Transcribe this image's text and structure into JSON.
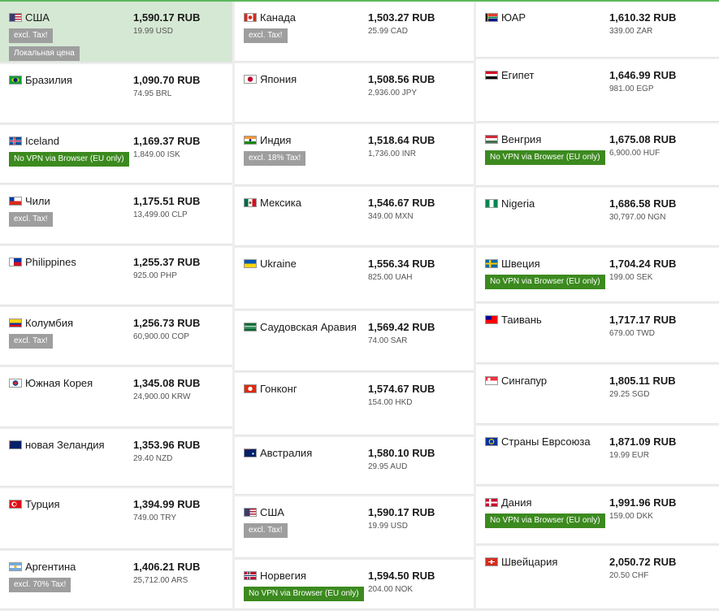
{
  "columns": [
    [
      {
        "country": "США",
        "price": "1,590.17 RUB",
        "orig": "19.99 USD",
        "flag": "us-flag",
        "badges": [
          {
            "text": "excl. Tax!",
            "kind": "gray"
          },
          {
            "text": "Локальная цена",
            "kind": "gray"
          }
        ],
        "highlight": true
      },
      {
        "country": "Бразилия",
        "price": "1,090.70 RUB",
        "orig": "74.95 BRL",
        "flag": "brazil-flag",
        "badges": []
      },
      {
        "country": "Iceland",
        "price": "1,169.37 RUB",
        "orig": "1,849.00 ISK",
        "flag": "iceland-flag",
        "badges": [
          {
            "text": "No VPN via Browser (EU only)",
            "kind": "green"
          }
        ]
      },
      {
        "country": "Чили",
        "price": "1,175.51 RUB",
        "orig": "13,499.00 CLP",
        "flag": "chile-flag",
        "badges": [
          {
            "text": "excl. Tax!",
            "kind": "gray"
          }
        ]
      },
      {
        "country": "Philippines",
        "price": "1,255.37 RUB",
        "orig": "925.00 PHP",
        "flag": "philippines-flag",
        "badges": []
      },
      {
        "country": "Колумбия",
        "price": "1,256.73 RUB",
        "orig": "60,900.00 COP",
        "flag": "colombia-flag",
        "badges": [
          {
            "text": "excl. Tax!",
            "kind": "gray"
          }
        ]
      },
      {
        "country": "Южная Корея",
        "price": "1,345.08 RUB",
        "orig": "24,900.00 KRW",
        "flag": "south-korea-flag",
        "badges": []
      },
      {
        "country": "новая Зеландия",
        "price": "1,353.96 RUB",
        "orig": "29.40 NZD",
        "flag": "new-zealand-flag",
        "badges": []
      },
      {
        "country": "Турция",
        "price": "1,394.99 RUB",
        "orig": "749.00 TRY",
        "flag": "turkey-flag",
        "badges": []
      },
      {
        "country": "Аргентина",
        "price": "1,406.21 RUB",
        "orig": "25,712.00 ARS",
        "flag": "argentina-flag",
        "badges": [
          {
            "text": "excl. 70% Tax!",
            "kind": "gray"
          }
        ]
      }
    ],
    [
      {
        "country": "Канада",
        "price": "1,503.27 RUB",
        "orig": "25.99 CAD",
        "flag": "canada-flag",
        "badges": [
          {
            "text": "excl. Tax!",
            "kind": "gray"
          }
        ]
      },
      {
        "country": "Япония",
        "price": "1,508.56 RUB",
        "orig": "2,936.00 JPY",
        "flag": "japan-flag",
        "badges": []
      },
      {
        "country": "Индия",
        "price": "1,518.64 RUB",
        "orig": "1,736.00 INR",
        "flag": "india-flag",
        "badges": [
          {
            "text": "excl. 18% Tax!",
            "kind": "gray"
          }
        ]
      },
      {
        "country": "Мексика",
        "price": "1,546.67 RUB",
        "orig": "349.00 MXN",
        "flag": "mexico-flag",
        "badges": []
      },
      {
        "country": "Ukraine",
        "price": "1,556.34 RUB",
        "orig": "825.00 UAH",
        "flag": "ukraine-flag",
        "badges": []
      },
      {
        "country": "Саудовская Аравия",
        "price": "1,569.42 RUB",
        "orig": "74.00 SAR",
        "flag": "saudi-arabia-flag",
        "badges": []
      },
      {
        "country": "Гонконг",
        "price": "1,574.67 RUB",
        "orig": "154.00 HKD",
        "flag": "hong-kong-flag",
        "badges": []
      },
      {
        "country": "Австралия",
        "price": "1,580.10 RUB",
        "orig": "29.95 AUD",
        "flag": "australia-flag",
        "badges": []
      },
      {
        "country": "США",
        "price": "1,590.17 RUB",
        "orig": "19.99 USD",
        "flag": "us-flag",
        "badges": [
          {
            "text": "excl. Tax!",
            "kind": "gray"
          }
        ]
      },
      {
        "country": "Норвегия",
        "price": "1,594.50 RUB",
        "orig": "204.00 NOK",
        "flag": "norway-flag",
        "badges": [
          {
            "text": "No VPN via Browser (EU only)",
            "kind": "green"
          }
        ]
      }
    ],
    [
      {
        "country": "ЮАР",
        "price": "1,610.32 RUB",
        "orig": "339.00 ZAR",
        "flag": "south-africa-flag",
        "badges": []
      },
      {
        "country": "Египет",
        "price": "1,646.99 RUB",
        "orig": "981.00 EGP",
        "flag": "egypt-flag",
        "badges": []
      },
      {
        "country": "Венгрия",
        "price": "1,675.08 RUB",
        "orig": "6,900.00 HUF",
        "flag": "hungary-flag",
        "badges": [
          {
            "text": "No VPN via Browser (EU only)",
            "kind": "green"
          }
        ]
      },
      {
        "country": "Nigeria",
        "price": "1,686.58 RUB",
        "orig": "30,797.00 NGN",
        "flag": "nigeria-flag",
        "badges": []
      },
      {
        "country": "Швеция",
        "price": "1,704.24 RUB",
        "orig": "199.00 SEK",
        "flag": "sweden-flag",
        "badges": [
          {
            "text": "No VPN via Browser (EU only)",
            "kind": "green"
          }
        ]
      },
      {
        "country": "Таивань",
        "price": "1,717.17 RUB",
        "orig": "679.00 TWD",
        "flag": "taiwan-flag",
        "badges": []
      },
      {
        "country": "Сингапур",
        "price": "1,805.11 RUB",
        "orig": "29.25 SGD",
        "flag": "singapore-flag",
        "badges": []
      },
      {
        "country": "Страны Еврсоюза",
        "price": "1,871.09 RUB",
        "orig": "19.99 EUR",
        "flag": "eu-flag",
        "badges": []
      },
      {
        "country": "Дания",
        "price": "1,991.96 RUB",
        "orig": "159.00 DKK",
        "flag": "denmark-flag",
        "badges": [
          {
            "text": "No VPN via Browser (EU only)",
            "kind": "green"
          }
        ]
      },
      {
        "country": "Швейцария",
        "price": "2,050.72 RUB",
        "orig": "20.50 CHF",
        "flag": "switzerland-flag",
        "badges": []
      }
    ]
  ]
}
